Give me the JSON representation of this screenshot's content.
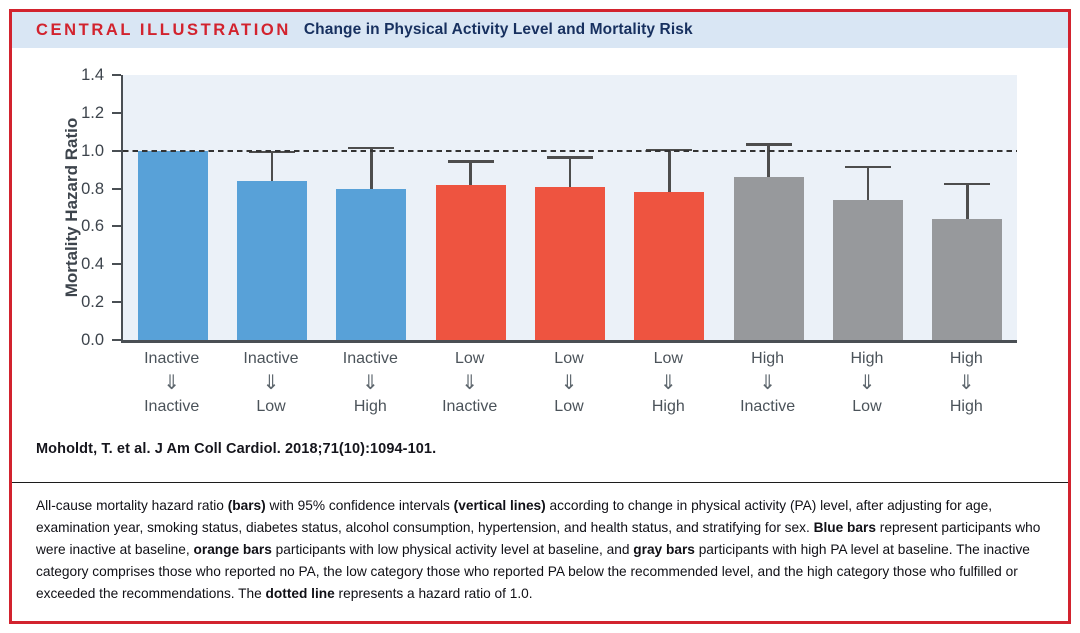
{
  "header": {
    "kicker": "CENTRAL ILLUSTRATION",
    "title": "Change in Physical Activity Level and Mortality Risk"
  },
  "citation": "Moholdt, T. et al. J Am Coll Cardiol. 2018;71(10):1094-101.",
  "caption_segments": [
    {
      "text": "All-cause mortality hazard ratio ",
      "bold": false
    },
    {
      "text": "(bars)",
      "bold": true
    },
    {
      "text": " with 95% confidence intervals ",
      "bold": false
    },
    {
      "text": "(vertical lines)",
      "bold": true
    },
    {
      "text": " according to change in physical activity (PA) level, after adjusting for age, examination year, smoking status, diabetes status, alcohol consumption, hypertension, and health status, and stratifying for sex. ",
      "bold": false
    },
    {
      "text": "Blue bars",
      "bold": true
    },
    {
      "text": " represent participants who were inactive at baseline, ",
      "bold": false
    },
    {
      "text": "orange bars",
      "bold": true
    },
    {
      "text": " participants with low physical activity level at baseline, and ",
      "bold": false
    },
    {
      "text": "gray bars",
      "bold": true
    },
    {
      "text": " participants with high PA level at baseline. The inactive category comprises those who reported no PA, the low category those who reported PA below the recommended level, and the high category those who fulfilled or exceeded the recommendations. The ",
      "bold": false
    },
    {
      "text": "dotted line",
      "bold": true
    },
    {
      "text": " represents a hazard ratio of 1.0.",
      "bold": false
    }
  ],
  "colors": {
    "frame_red": "#d2232e",
    "header_bg": "#d9e6f4",
    "title_navy": "#17305f",
    "plot_bg": "#ebf1f8",
    "blue": "#58a1d8",
    "orange": "#ee5440",
    "gray": "#97999c",
    "axis": "#4a4f54",
    "error_bar": "#4d4d4d",
    "dashed_line": "#333333"
  },
  "chart_data": {
    "type": "bar",
    "title": "Change in Physical Activity Level and Mortality Risk",
    "ylabel": "Mortality Hazard Ratio",
    "xlabel": "",
    "ylim": [
      0.0,
      1.4
    ],
    "yticks": [
      0.0,
      0.2,
      0.4,
      0.6,
      0.8,
      1.0,
      1.2,
      1.4
    ],
    "reference_line": 1.0,
    "grid": false,
    "legend": "none",
    "arrow_glyph": "⇓",
    "bars": [
      {
        "from": "Inactive",
        "to": "Inactive",
        "hazard_ratio": 1.0,
        "ci_upper": null,
        "color_key": "blue"
      },
      {
        "from": "Inactive",
        "to": "Low",
        "hazard_ratio": 0.84,
        "ci_upper": 1.0,
        "color_key": "blue"
      },
      {
        "from": "Inactive",
        "to": "High",
        "hazard_ratio": 0.8,
        "ci_upper": 1.02,
        "color_key": "blue"
      },
      {
        "from": "Low",
        "to": "Inactive",
        "hazard_ratio": 0.82,
        "ci_upper": 0.95,
        "color_key": "orange"
      },
      {
        "from": "Low",
        "to": "Low",
        "hazard_ratio": 0.81,
        "ci_upper": 0.97,
        "color_key": "orange"
      },
      {
        "from": "Low",
        "to": "High",
        "hazard_ratio": 0.78,
        "ci_upper": 1.01,
        "color_key": "orange"
      },
      {
        "from": "High",
        "to": "Inactive",
        "hazard_ratio": 0.86,
        "ci_upper": 1.04,
        "color_key": "gray"
      },
      {
        "from": "High",
        "to": "Low",
        "hazard_ratio": 0.74,
        "ci_upper": 0.92,
        "color_key": "gray"
      },
      {
        "from": "High",
        "to": "High",
        "hazard_ratio": 0.64,
        "ci_upper": 0.83,
        "color_key": "gray"
      }
    ]
  }
}
